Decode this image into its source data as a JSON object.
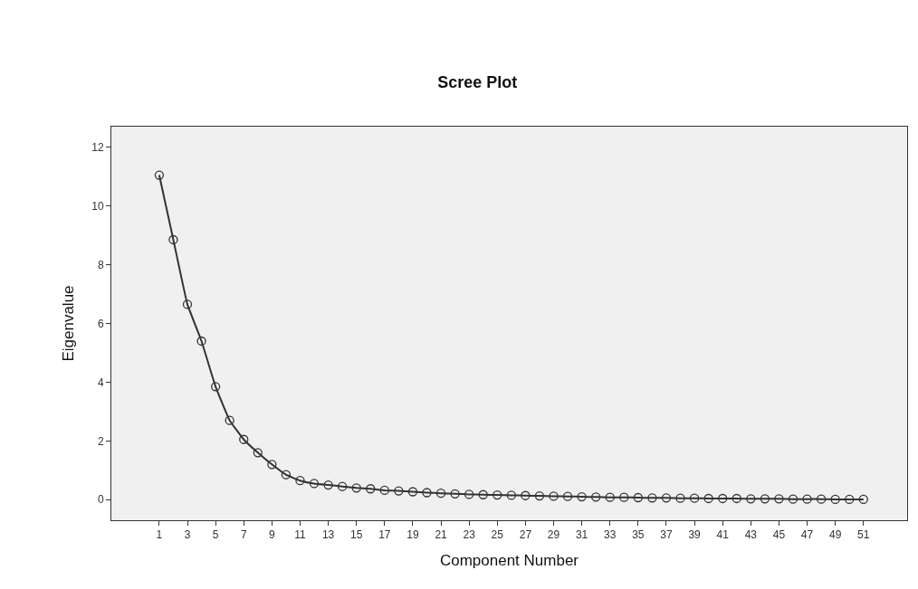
{
  "chart_data": {
    "type": "line",
    "title": "Scree Plot",
    "xlabel": "Component Number",
    "ylabel": "Eigenvalue",
    "x": [
      1,
      2,
      3,
      4,
      5,
      6,
      7,
      8,
      9,
      10,
      11,
      12,
      13,
      14,
      15,
      16,
      17,
      18,
      19,
      20,
      21,
      22,
      23,
      24,
      25,
      26,
      27,
      28,
      29,
      30,
      31,
      32,
      33,
      34,
      35,
      36,
      37,
      38,
      39,
      40,
      41,
      42,
      43,
      44,
      45,
      46,
      47,
      48,
      49,
      50,
      51
    ],
    "series": [
      {
        "color": "#333333",
        "values": [
          11.05,
          8.85,
          6.65,
          5.4,
          3.85,
          2.7,
          2.05,
          1.6,
          1.2,
          0.85,
          0.65,
          0.55,
          0.5,
          0.45,
          0.4,
          0.37,
          0.32,
          0.3,
          0.27,
          0.24,
          0.22,
          0.2,
          0.18,
          0.17,
          0.16,
          0.15,
          0.14,
          0.13,
          0.12,
          0.11,
          0.1,
          0.09,
          0.08,
          0.08,
          0.07,
          0.06,
          0.06,
          0.05,
          0.05,
          0.04,
          0.04,
          0.04,
          0.03,
          0.03,
          0.03,
          0.02,
          0.02,
          0.02,
          0.01,
          0.01,
          0.01
        ]
      }
    ],
    "xlim": [
      -2.4,
      54.1
    ],
    "xticks": [
      1,
      3,
      5,
      7,
      9,
      11,
      13,
      15,
      17,
      19,
      21,
      23,
      25,
      27,
      29,
      31,
      33,
      35,
      37,
      39,
      41,
      43,
      45,
      47,
      49,
      51
    ],
    "ylim": [
      -0.7,
      12.7
    ],
    "yticks": [
      0,
      2,
      4,
      6,
      8,
      10,
      12
    ],
    "marker": "circle",
    "line_style": "solid",
    "grid": false,
    "legend": false
  }
}
